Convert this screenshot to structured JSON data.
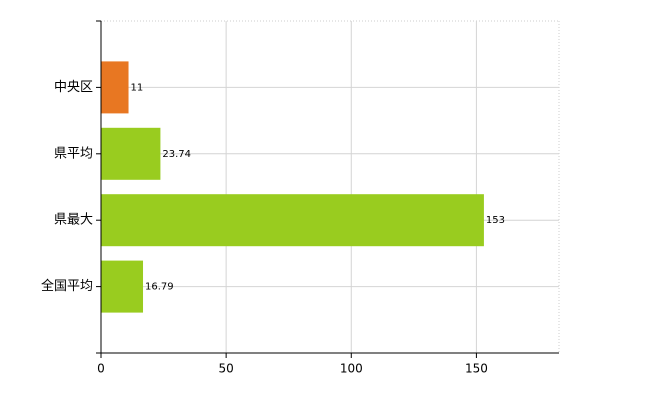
{
  "chart_data": {
    "type": "bar",
    "orientation": "horizontal",
    "categories": [
      "中央区",
      "県平均",
      "県最大",
      "全国平均"
    ],
    "values": [
      11,
      23.74,
      153,
      16.79
    ],
    "colors": [
      "#e87722",
      "#99cc1f",
      "#99cc1f",
      "#99cc1f"
    ],
    "xlim": [
      0,
      183
    ],
    "xticks": [
      0,
      50,
      100,
      150
    ],
    "grid": true
  }
}
